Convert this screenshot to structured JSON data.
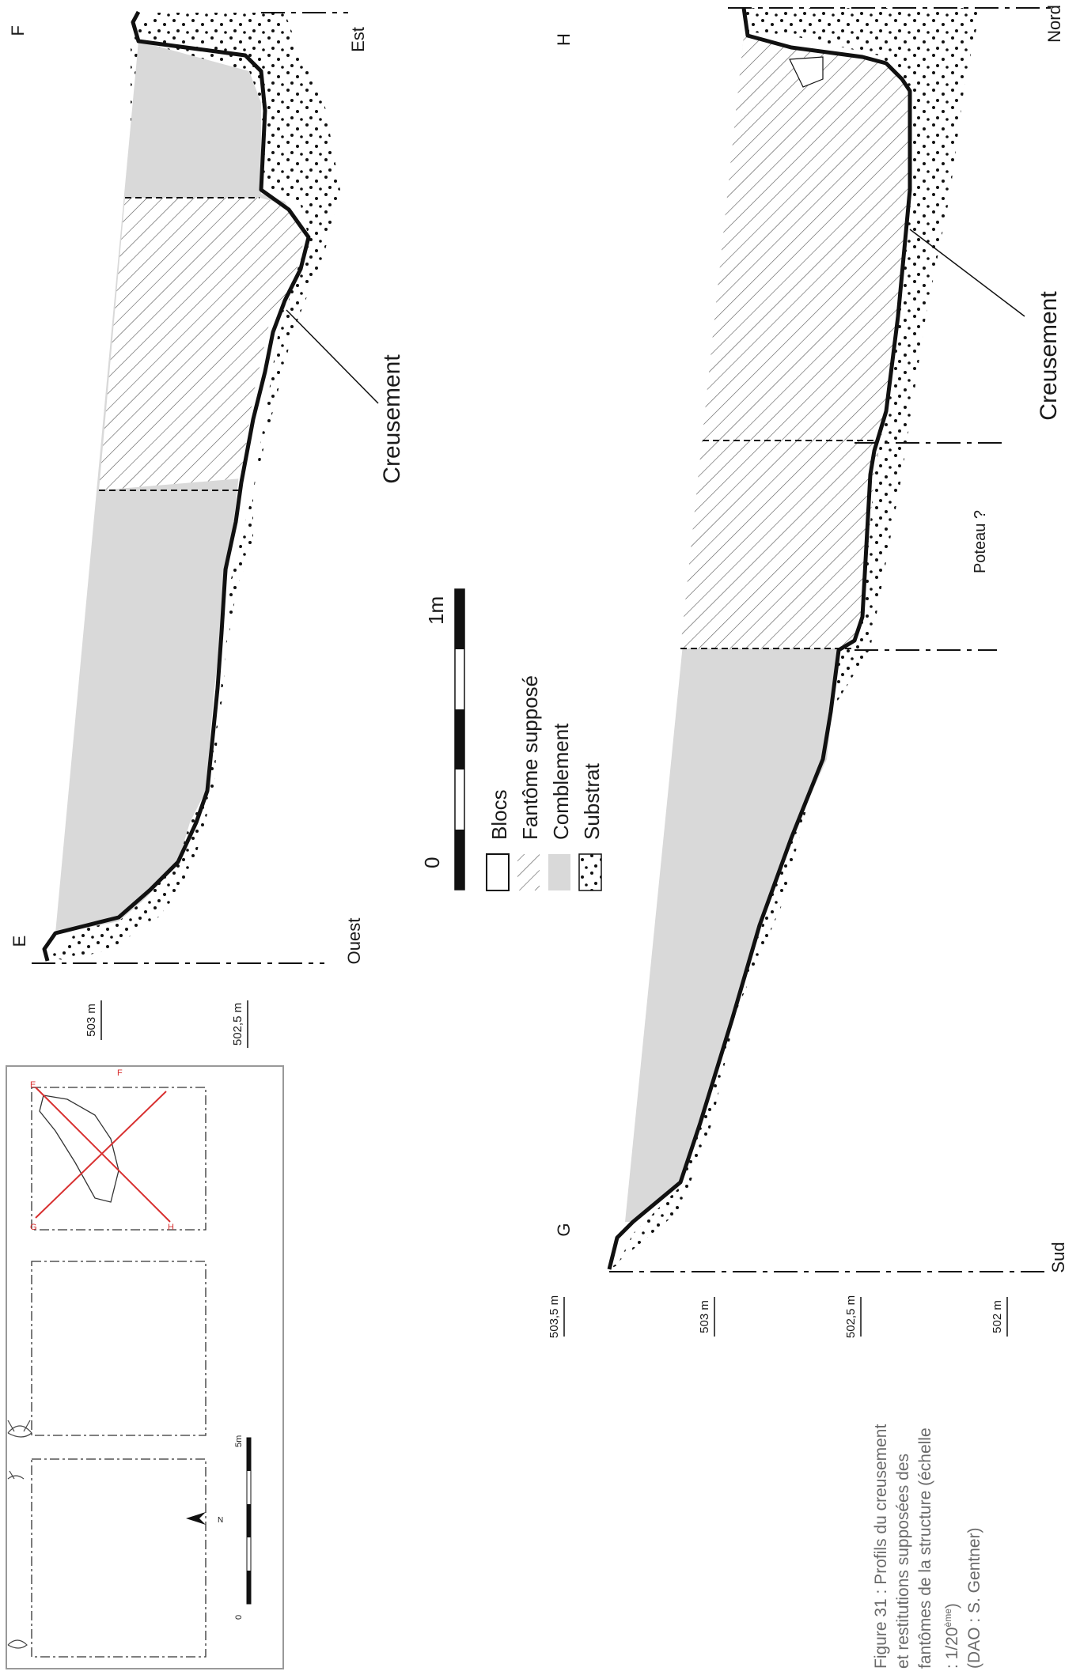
{
  "colors": {
    "comblement": "#d9d9d9",
    "line": "#111111",
    "map_red": "#d83030",
    "caption": "#6a6a6a"
  },
  "profile_ef": {
    "start_label": "E",
    "end_label": "F",
    "west_label": "Ouest",
    "east_label": "Est",
    "creusement_label": "Creusement",
    "alt_503": "503 m",
    "alt_5025": "502,5 m"
  },
  "profile_gh": {
    "start_label": "G",
    "end_label": "H",
    "south_label": "Sud",
    "north_label": "Nord",
    "creusement_label": "Creusement",
    "poteau_label": "Poteau ?",
    "alt_5035": "503,5 m",
    "alt_503": "503 m",
    "alt_5025": "502,5 m",
    "alt_502": "502 m"
  },
  "scale": {
    "start": "0",
    "end": "1m"
  },
  "legend": {
    "items": [
      {
        "label": "Blocs",
        "pattern": "white"
      },
      {
        "label": "Fantôme supposé",
        "pattern": "hatch"
      },
      {
        "label": "Comblement",
        "pattern": "grey"
      },
      {
        "label": "Substrat",
        "pattern": "dots"
      }
    ]
  },
  "location_map": {
    "north": "N",
    "scale_start": "0",
    "scale_end": "5m",
    "points": [
      "E",
      "F",
      "G",
      "H"
    ]
  },
  "caption": {
    "line1": "Figure 31 : Profils du creusement",
    "line2": "et restitutions supposées des",
    "line3": "fantômes de la structure (échelle",
    "line4_prefix": ": 1/20",
    "line4_sup": "ème",
    "line4_suffix": ")",
    "line5": "(DAO : S. Gentner)"
  }
}
